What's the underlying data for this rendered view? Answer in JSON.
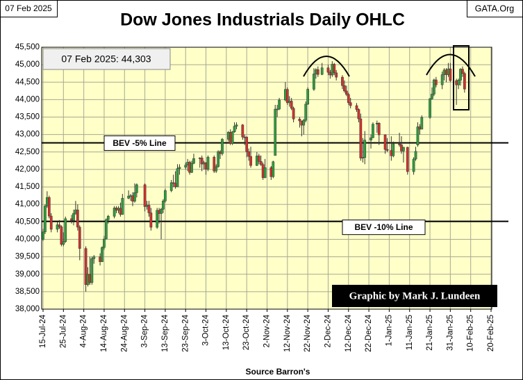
{
  "chart_data": {
    "type": "candlestick",
    "title": "Dow Jones Industrials Daily OHLC",
    "header_left": "07 Feb 2025",
    "header_right": "GATA.Org",
    "annotation": "07 Feb 2025:  44,303",
    "credit": "Graphic by Mark J. Lundeen",
    "xlabel": "Source Barron's",
    "up_color": "#2e9e3e",
    "down_color": "#d0312d",
    "grid": true,
    "xlim": [
      "2024-07-15",
      "2025-02-20"
    ],
    "ylim": [
      38000,
      45500
    ],
    "xticks": [
      {
        "value": "2024-07-15",
        "label": "15-Jul-24"
      },
      {
        "value": "2024-07-25",
        "label": "25-Jul-24"
      },
      {
        "value": "2024-08-04",
        "label": "4-Aug-24"
      },
      {
        "value": "2024-08-14",
        "label": "14-Aug-24"
      },
      {
        "value": "2024-08-24",
        "label": "24-Aug-24"
      },
      {
        "value": "2024-09-03",
        "label": "3-Sep-24"
      },
      {
        "value": "2024-09-13",
        "label": "13-Sep-24"
      },
      {
        "value": "2024-09-23",
        "label": "23-Sep-24"
      },
      {
        "value": "2024-10-03",
        "label": "3-Oct-24"
      },
      {
        "value": "2024-10-13",
        "label": "13-Oct-24"
      },
      {
        "value": "2024-10-23",
        "label": "23-Oct-24"
      },
      {
        "value": "2024-11-02",
        "label": "2-Nov-24"
      },
      {
        "value": "2024-11-12",
        "label": "12-Nov-24"
      },
      {
        "value": "2024-11-22",
        "label": "22-Nov-24"
      },
      {
        "value": "2024-12-02",
        "label": "2-Dec-24"
      },
      {
        "value": "2024-12-12",
        "label": "12-Dec-24"
      },
      {
        "value": "2024-12-22",
        "label": "22-Dec-24"
      },
      {
        "value": "2025-01-01",
        "label": "1-Jan-25"
      },
      {
        "value": "2025-01-11",
        "label": "11-Jan-25"
      },
      {
        "value": "2025-01-21",
        "label": "21-Jan-25"
      },
      {
        "value": "2025-01-31",
        "label": "31-Jan-25"
      },
      {
        "value": "2025-02-10",
        "label": "10-Feb-25"
      },
      {
        "value": "2025-02-20",
        "label": "20-Feb-25"
      }
    ],
    "yticks": [
      {
        "value": 38000,
        "label": "38,000"
      },
      {
        "value": 38500,
        "label": "38,500"
      },
      {
        "value": 39000,
        "label": "39,000"
      },
      {
        "value": 39500,
        "label": "39,500"
      },
      {
        "value": 40000,
        "label": "40,000"
      },
      {
        "value": 40500,
        "label": "40,500"
      },
      {
        "value": 41000,
        "label": "41,000"
      },
      {
        "value": 41500,
        "label": "41,500"
      },
      {
        "value": 42000,
        "label": "42,000"
      },
      {
        "value": 42500,
        "label": "42,500"
      },
      {
        "value": 43000,
        "label": "43,000"
      },
      {
        "value": 43500,
        "label": "43,500"
      },
      {
        "value": 44000,
        "label": "44,000"
      },
      {
        "value": 44500,
        "label": "44,500"
      },
      {
        "value": 45000,
        "label": "45,000"
      },
      {
        "value": 45500,
        "label": "45,500"
      }
    ],
    "reference_lines": [
      {
        "label": "BEV -5% Line",
        "value": 42763
      },
      {
        "label": "BEV -10% Line",
        "value": 40513
      }
    ],
    "x": [
      "2024-07-15",
      "2024-07-16",
      "2024-07-17",
      "2024-07-18",
      "2024-07-19",
      "2024-07-22",
      "2024-07-23",
      "2024-07-24",
      "2024-07-25",
      "2024-07-26",
      "2024-07-29",
      "2024-07-30",
      "2024-07-31",
      "2024-08-01",
      "2024-08-02",
      "2024-08-05",
      "2024-08-06",
      "2024-08-07",
      "2024-08-08",
      "2024-08-09",
      "2024-08-12",
      "2024-08-13",
      "2024-08-14",
      "2024-08-15",
      "2024-08-16",
      "2024-08-19",
      "2024-08-20",
      "2024-08-21",
      "2024-08-22",
      "2024-08-23",
      "2024-08-26",
      "2024-08-27",
      "2024-08-28",
      "2024-08-29",
      "2024-08-30",
      "2024-09-03",
      "2024-09-04",
      "2024-09-05",
      "2024-09-06",
      "2024-09-09",
      "2024-09-10",
      "2024-09-11",
      "2024-09-12",
      "2024-09-13",
      "2024-09-16",
      "2024-09-17",
      "2024-09-18",
      "2024-09-19",
      "2024-09-20",
      "2024-09-23",
      "2024-09-24",
      "2024-09-25",
      "2024-09-26",
      "2024-09-27",
      "2024-09-30",
      "2024-10-01",
      "2024-10-02",
      "2024-10-03",
      "2024-10-04",
      "2024-10-07",
      "2024-10-08",
      "2024-10-09",
      "2024-10-10",
      "2024-10-11",
      "2024-10-14",
      "2024-10-15",
      "2024-10-16",
      "2024-10-17",
      "2024-10-18",
      "2024-10-21",
      "2024-10-22",
      "2024-10-23",
      "2024-10-24",
      "2024-10-25",
      "2024-10-28",
      "2024-10-29",
      "2024-10-30",
      "2024-10-31",
      "2024-11-01",
      "2024-11-04",
      "2024-11-05",
      "2024-11-06",
      "2024-11-07",
      "2024-11-08",
      "2024-11-11",
      "2024-11-12",
      "2024-11-13",
      "2024-11-14",
      "2024-11-15",
      "2024-11-18",
      "2024-11-19",
      "2024-11-20",
      "2024-11-21",
      "2024-11-22",
      "2024-11-25",
      "2024-11-26",
      "2024-11-27",
      "2024-11-29",
      "2024-12-02",
      "2024-12-03",
      "2024-12-04",
      "2024-12-05",
      "2024-12-06",
      "2024-12-09",
      "2024-12-10",
      "2024-12-11",
      "2024-12-12",
      "2024-12-13",
      "2024-12-16",
      "2024-12-17",
      "2024-12-18",
      "2024-12-19",
      "2024-12-20",
      "2024-12-23",
      "2024-12-24",
      "2024-12-26",
      "2024-12-27",
      "2024-12-30",
      "2024-12-31",
      "2025-01-02",
      "2025-01-03",
      "2025-01-06",
      "2025-01-07",
      "2025-01-08",
      "2025-01-10",
      "2025-01-13",
      "2025-01-14",
      "2025-01-15",
      "2025-01-16",
      "2025-01-17",
      "2025-01-21",
      "2025-01-22",
      "2025-01-23",
      "2025-01-24",
      "2025-01-27",
      "2025-01-28",
      "2025-01-29",
      "2025-01-30",
      "2025-01-31",
      "2025-02-03",
      "2025-02-04",
      "2025-02-05",
      "2025-02-06",
      "2025-02-07"
    ],
    "open": [
      40000,
      40211,
      40954,
      41198,
      40665,
      40288,
      40415,
      40358,
      39854,
      39935,
      40589,
      40540,
      40743,
      40843,
      40348,
      39737,
      38703,
      38997,
      38763,
      39446,
      39498,
      39357,
      39766,
      40009,
      40563,
      40660,
      40897,
      40834,
      40891,
      40713,
      41175,
      41240,
      41250,
      41091,
      41335,
      41563,
      40937,
      40975,
      40756,
      40345,
      40830,
      40737,
      40861,
      41097,
      41394,
      41622,
      41606,
      41504,
      42025,
      42063,
      42125,
      42208,
      41915,
      42175,
      42313,
      42330,
      42156,
      42197,
      42011,
      42353,
      41954,
      42080,
      42512,
      42454,
      42864,
      43065,
      42740,
      43077,
      43239,
      43276,
      42931,
      42925,
      42514,
      42374,
      42114,
      42387,
      42233,
      42142,
      41763,
      42052,
      41794,
      42400,
      43729,
      43729,
      43989,
      44293,
      43911,
      43958,
      43751,
      43445,
      43390,
      43269,
      43408,
      43870,
      44297,
      44736,
      44860,
      44722,
      44911,
      44782,
      44705,
      45014,
      44766,
      44643,
      44401,
      44248,
      44149,
      43914,
      43828,
      43717,
      43450,
      42326,
      42342,
      42840,
      42907,
      43297,
      43326,
      42992,
      42574,
      42544,
      42392,
      42732,
      42706,
      42528,
      42635,
      41938,
      42297,
      42700,
      43222,
      43153,
      43488,
      44025,
      44157,
      44565,
      44424,
      44714,
      44850,
      44714,
      44882,
      44545,
      44422,
      44556,
      44873,
      44747
    ],
    "high": [
      40300,
      41000,
      41376,
      41250,
      40750,
      40500,
      40550,
      40400,
      40200,
      40650,
      40700,
      40850,
      41100,
      41000,
      40400,
      39800,
      39200,
      39500,
      39500,
      39550,
      39600,
      39800,
      40100,
      40600,
      40700,
      40950,
      40950,
      40950,
      41050,
      41300,
      41400,
      41300,
      41350,
      41600,
      41600,
      41600,
      41100,
      41100,
      40900,
      40900,
      40900,
      40900,
      41150,
      41450,
      41700,
      41850,
      41950,
      42150,
      42150,
      42200,
      42300,
      42250,
      42250,
      42450,
      42350,
      42400,
      42250,
      42200,
      42400,
      42400,
      42150,
      42550,
      42550,
      42900,
      43100,
      43150,
      43100,
      43350,
      43350,
      43300,
      43000,
      42950,
      42600,
      42650,
      42500,
      42450,
      42400,
      42200,
      42300,
      42100,
      42250,
      43850,
      43850,
      44050,
      44500,
      44350,
      44100,
      44050,
      43800,
      43500,
      43400,
      43450,
      43950,
      44350,
      44900,
      44900,
      44950,
      45050,
      45000,
      44850,
      45100,
      45050,
      44850,
      44700,
      44550,
      44400,
      44200,
      44050,
      43900,
      43750,
      43600,
      42900,
      43100,
      43000,
      43350,
      43400,
      43350,
      43000,
      42900,
      42950,
      42800,
      43050,
      42950,
      42650,
      42650,
      42350,
      42650,
      43350,
      43300,
      43550,
      44050,
      44350,
      44600,
      44650,
      44800,
      44900,
      44900,
      45050,
      45050,
      44600,
      44600,
      44900,
      44950,
      44800
    ],
    "low": [
      39950,
      40150,
      40900,
      40600,
      40200,
      40200,
      40300,
      39800,
      39800,
      39900,
      40450,
      40400,
      40700,
      40250,
      39400,
      38500,
      38650,
      38700,
      38700,
      39300,
      39250,
      39350,
      39700,
      40000,
      40450,
      40600,
      40750,
      40750,
      40650,
      40700,
      41150,
      41100,
      40950,
      41050,
      41200,
      40800,
      40850,
      40650,
      40250,
      40300,
      40450,
      40000,
      40750,
      41050,
      41350,
      41500,
      41450,
      41500,
      41850,
      42000,
      41950,
      41850,
      41900,
      42150,
      42050,
      41950,
      42000,
      41850,
      41950,
      41900,
      41900,
      42050,
      42300,
      42400,
      42800,
      42700,
      42700,
      43050,
      43150,
      42850,
      42700,
      42350,
      42250,
      42050,
      42100,
      42150,
      42100,
      41700,
      41750,
      41700,
      41750,
      42400,
      43500,
      43700,
      43950,
      43850,
      43800,
      43700,
      43350,
      43200,
      42950,
      43000,
      43350,
      43850,
      44250,
      44600,
      44650,
      44700,
      44700,
      44600,
      44650,
      44700,
      44550,
      44300,
      44200,
      44100,
      43850,
      43750,
      43650,
      43350,
      42250,
      42200,
      42150,
      42600,
      42900,
      43050,
      42700,
      42450,
      42500,
      42250,
      42350,
      42650,
      42450,
      42200,
      41850,
      41850,
      42250,
      42650,
      43000,
      43150,
      43450,
      44000,
      44100,
      44350,
      44300,
      44550,
      44500,
      44650,
      44500,
      43850,
      44300,
      44400,
      44650,
      44200
    ],
    "close": [
      40211,
      40954,
      41198,
      40665,
      40288,
      40415,
      40358,
      39854,
      39935,
      40589,
      40540,
      40743,
      40843,
      40348,
      39737,
      38703,
      38997,
      38763,
      39446,
      39498,
      39357,
      39766,
      40009,
      40563,
      40660,
      40897,
      40834,
      40891,
      40713,
      41175,
      41240,
      41250,
      41091,
      41335,
      41563,
      40937,
      40975,
      40756,
      40345,
      40830,
      40737,
      40861,
      41097,
      41394,
      41622,
      41606,
      41504,
      42025,
      42063,
      42125,
      42208,
      41915,
      42175,
      42313,
      42330,
      42156,
      42197,
      42011,
      42353,
      41954,
      42080,
      42512,
      42454,
      42864,
      43065,
      42740,
      43077,
      43239,
      43276,
      42931,
      42925,
      42514,
      42374,
      42114,
      42387,
      42233,
      42142,
      41763,
      42052,
      41794,
      42222,
      43729,
      43729,
      43989,
      44293,
      43911,
      43958,
      43751,
      43445,
      43390,
      43269,
      43408,
      43870,
      44297,
      44736,
      44860,
      44722,
      44911,
      44782,
      44705,
      45014,
      44766,
      44643,
      44401,
      44248,
      44149,
      43914,
      43828,
      43717,
      43450,
      42326,
      42342,
      42840,
      42907,
      43297,
      43326,
      42992,
      42574,
      42544,
      42392,
      42732,
      42706,
      42528,
      42635,
      41938,
      42297,
      42518,
      43222,
      43153,
      43488,
      44025,
      44157,
      44565,
      44424,
      44714,
      44850,
      44714,
      44882,
      44545,
      44422,
      44556,
      44873,
      44747,
      44303
    ]
  }
}
